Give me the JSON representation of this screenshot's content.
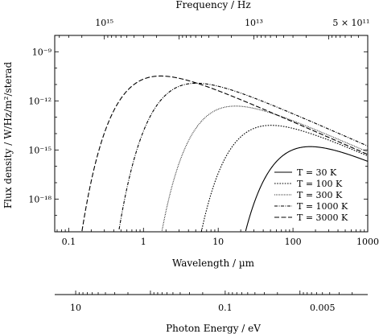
{
  "chart_data": {
    "type": "line",
    "title": "",
    "xlabel": "Wavelength / µm",
    "ylabel": "Flux density / W/Hz/m²/sterad",
    "x_scale": "log",
    "y_scale": "log",
    "xlim": [
      0.065,
      1000
    ],
    "ylim": [
      1e-20,
      1e-08
    ],
    "x_ticks": [
      {
        "value": 0.1,
        "label": "0.1"
      },
      {
        "value": 1,
        "label": "1"
      },
      {
        "value": 10,
        "label": "10"
      },
      {
        "value": 100,
        "label": "100"
      },
      {
        "value": 1000,
        "label": "1000"
      }
    ],
    "y_ticks": [
      {
        "value": 1e-09,
        "label": "10⁻⁹"
      },
      {
        "value": 1e-12,
        "label": "10⁻¹²"
      },
      {
        "value": 1e-15,
        "label": "10⁻¹⁵"
      },
      {
        "value": 1e-18,
        "label": "10⁻¹⁸"
      }
    ],
    "top_axis": {
      "label": "Frequency / Hz",
      "ticks": [
        {
          "value": 1000000000000000.0,
          "label": "10¹⁵"
        },
        {
          "value": 10000000000000.0,
          "label": "10¹³"
        },
        {
          "value": 500000000000.0,
          "label": "5 × 10¹¹"
        }
      ]
    },
    "bottom_axis_2": {
      "label": "Photon Energy / eV",
      "ticks": [
        {
          "value": 10,
          "label": "10"
        },
        {
          "value": 0.1,
          "label": "0.1"
        },
        {
          "value": 0.005,
          "label": "0.005"
        }
      ]
    },
    "legend": {
      "position": "bottom-right"
    },
    "series": [
      {
        "name": "T = 30 K",
        "temperature": 30,
        "dash": "solid",
        "x": [
          23,
          30,
          50,
          100,
          170,
          300,
          600,
          1000
        ],
        "y": [
          1e-20,
          1.2e-18,
          1.1e-16,
          1.1e-15,
          1.6e-15,
          1.2e-15,
          5.4e-16,
          2.3e-16
        ]
      },
      {
        "name": "T = 100 K",
        "temperature": 100,
        "dash": "dotted",
        "x": [
          5.8,
          8,
          10,
          20,
          30,
          50,
          100,
          300,
          1000
        ],
        "y": [
          1e-20,
          1.8e-18,
          1.6e-17,
          4e-15,
          1.6e-14,
          3.2e-14,
          2.5e-14,
          6e-15,
          8e-16
        ]
      },
      {
        "name": "T = 300 K",
        "temperature": 300,
        "dash": "fine-dotted",
        "x": [
          1.9,
          2.5,
          3,
          5,
          10,
          17,
          30,
          100,
          300,
          1000
        ],
        "y": [
          1e-20,
          3e-18,
          2.6e-17,
          5.7e-15,
          2.2e-13,
          4.8e-13,
          3.9e-13,
          8.7e-14,
          1.8e-14,
          2.4e-15
        ]
      },
      {
        "name": "T = 1000 K",
        "temperature": 1000,
        "dash": "dash-dot",
        "x": [
          0.44,
          0.6,
          1,
          2,
          5,
          10,
          30,
          100,
          300,
          1000
        ],
        "y": [
          1e-20,
          3e-17,
          4.6e-14,
          3.3e-12,
          1.2e-11,
          8.2e-12,
          1.9e-12,
          2.8e-13,
          6.2e-14,
          8e-15
        ]
      },
      {
        "name": "T = 3000 K",
        "temperature": 3000,
        "dash": "dashed",
        "x": [
          0.13,
          0.2,
          0.3,
          0.5,
          1,
          1.7,
          3,
          10,
          30,
          100,
          300,
          1000
        ],
        "y": [
          1e-20,
          1.5e-16,
          3.8e-14,
          1.7e-12,
          2.2e-11,
          3.3e-11,
          2.4e-11,
          5e-12,
          9.7e-13,
          1e-13,
          1.5e-14,
          2.4e-15
        ]
      }
    ],
    "legend_labels": [
      "T = 30 K",
      "T = 100 K",
      "T = 300 K",
      "T = 1000 K",
      "T = 3000 K"
    ]
  }
}
